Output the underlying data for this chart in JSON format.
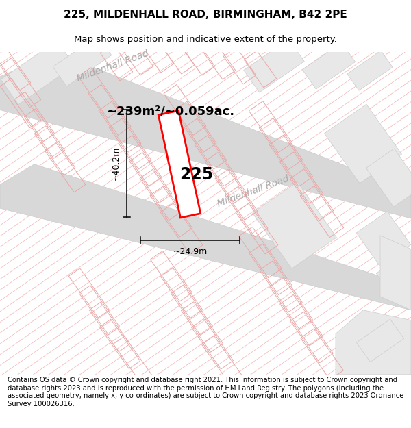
{
  "title": "225, MILDENHALL ROAD, BIRMINGHAM, B42 2PE",
  "subtitle": "Map shows position and indicative extent of the property.",
  "area_text": "~239m²/~0.059ac.",
  "label_225": "225",
  "dim_height": "~40.2m",
  "dim_width": "~24.9m",
  "road_label_top": "Mildenhall Road",
  "road_label_mid": "Mildenhall Road",
  "footer": "Contains OS data © Crown copyright and database right 2021. This information is subject to Crown copyright and database rights 2023 and is reproduced with the permission of HM Land Registry. The polygons (including the associated geometry, namely x, y co-ordinates) are subject to Crown copyright and database rights 2023 Ordnance Survey 100026316.",
  "bg_color": "#ffffff",
  "hatch_color": "#f5b8b8",
  "road_fill": "#d8d8d8",
  "road_edge": "#cccccc",
  "parcel_edge": "#e8a8a8",
  "gray_block_fill": "#e8e8e8",
  "gray_block_edge": "#cccccc",
  "plot_outline_color": "#ff0000",
  "road_label_color": "#aaaaaa",
  "text_color": "#000000",
  "title_fontsize": 11,
  "subtitle_fontsize": 9.5,
  "area_fontsize": 13,
  "label_fontsize": 17,
  "dim_fontsize": 9,
  "footer_fontsize": 7.2,
  "road_label_fontsize": 10
}
